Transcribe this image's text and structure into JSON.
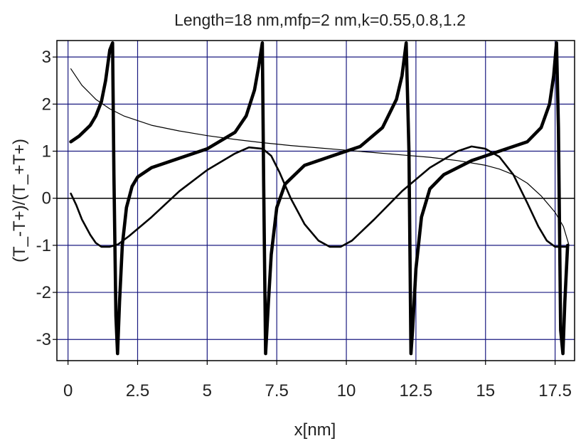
{
  "chart_data": {
    "type": "line",
    "title": "Length=18 nm,mfp=2 nm,k=0.55,0.8,1.2",
    "xlabel": "x[nm]",
    "ylabel": "(T_-T+)/(T_+T+)",
    "xlim": [
      -0.4,
      18.2
    ],
    "ylim": [
      -3.45,
      3.35
    ],
    "x_ticks": [
      0,
      2.5,
      5,
      7.5,
      10,
      12.5,
      15,
      17.5
    ],
    "x_tick_labels": [
      "0",
      "2.5",
      "5",
      "7.5",
      "10",
      "12.5",
      "15",
      "17.5"
    ],
    "y_ticks": [
      -3,
      -2,
      -1,
      0,
      1,
      2,
      3
    ],
    "y_tick_labels": [
      "-3",
      "-2",
      "-1",
      "0",
      "1",
      "2",
      "3"
    ],
    "grid": true,
    "colors": {
      "grid": "#1a1a80",
      "curve": "#000000",
      "axes": "#000000"
    },
    "series": [
      {
        "line": "thin",
        "x": [
          0.1,
          0.5,
          1.0,
          1.5,
          2.0,
          3.0,
          4.0,
          5.0,
          6.0,
          7.0,
          8.0,
          9.0,
          10.0,
          11.0,
          12.0,
          13.0,
          14.0,
          15.0,
          15.5,
          16.0,
          16.5,
          17.0,
          17.5,
          17.8,
          18.0
        ],
        "y": [
          2.75,
          2.4,
          2.1,
          1.9,
          1.75,
          1.55,
          1.43,
          1.33,
          1.25,
          1.18,
          1.12,
          1.07,
          1.02,
          0.97,
          0.92,
          0.87,
          0.8,
          0.7,
          0.62,
          0.5,
          0.32,
          0.05,
          -0.3,
          -0.6,
          -1.0
        ]
      },
      {
        "line": "medium",
        "x": [
          0.1,
          0.3,
          0.5,
          0.8,
          1.0,
          1.2,
          1.5,
          1.8,
          2.2,
          3.0,
          4.0,
          5.0,
          6.0,
          6.5,
          7.0,
          7.3,
          7.6,
          8.0,
          8.5,
          9.0,
          9.4,
          9.8,
          10.2,
          11.0,
          12.0,
          13.0,
          14.0,
          14.5,
          15.0,
          15.5,
          16.0,
          16.5,
          16.9,
          17.2,
          17.5,
          17.9
        ],
        "y": [
          0.1,
          -0.15,
          -0.45,
          -0.78,
          -0.95,
          -1.03,
          -1.03,
          -0.98,
          -0.8,
          -0.4,
          0.15,
          0.6,
          0.95,
          1.08,
          1.05,
          0.9,
          0.55,
          0.0,
          -0.55,
          -0.9,
          -1.03,
          -1.03,
          -0.9,
          -0.45,
          0.15,
          0.65,
          1.0,
          1.1,
          1.05,
          0.88,
          0.5,
          -0.1,
          -0.6,
          -0.9,
          -1.03,
          -1.03
        ]
      },
      {
        "line": "thick",
        "x": [
          0.1,
          0.4,
          0.8,
          1.0,
          1.2,
          1.35,
          1.5,
          1.6,
          1.65,
          1.72,
          1.78,
          1.85,
          1.95,
          2.1,
          2.3,
          2.5,
          3.0,
          4.0,
          5.0,
          6.0,
          6.4,
          6.7,
          6.85,
          6.98,
          7.03,
          7.1,
          7.2,
          7.3,
          7.5,
          7.8,
          8.5,
          9.5,
          10.5,
          11.3,
          11.8,
          12.0,
          12.15,
          12.25,
          12.32,
          12.38,
          12.5,
          12.7,
          13.0,
          13.5,
          14.5,
          15.5,
          16.5,
          17.0,
          17.3,
          17.45,
          17.55,
          17.62,
          17.7,
          17.78,
          17.85,
          17.95
        ],
        "y": [
          1.2,
          1.32,
          1.55,
          1.75,
          2.05,
          2.5,
          3.15,
          3.3,
          0.5,
          -2.5,
          -3.3,
          -2.2,
          -1.0,
          -0.2,
          0.25,
          0.45,
          0.65,
          0.85,
          1.05,
          1.4,
          1.75,
          2.3,
          2.8,
          3.3,
          0.3,
          -3.3,
          -2.2,
          -1.2,
          -0.2,
          0.3,
          0.7,
          0.9,
          1.1,
          1.5,
          2.1,
          2.6,
          3.3,
          1.0,
          -3.3,
          -2.8,
          -1.5,
          -0.4,
          0.2,
          0.5,
          0.8,
          1.0,
          1.2,
          1.5,
          2.0,
          2.6,
          3.3,
          1.5,
          -2.8,
          -3.3,
          -2.2,
          -1.0
        ]
      }
    ]
  }
}
